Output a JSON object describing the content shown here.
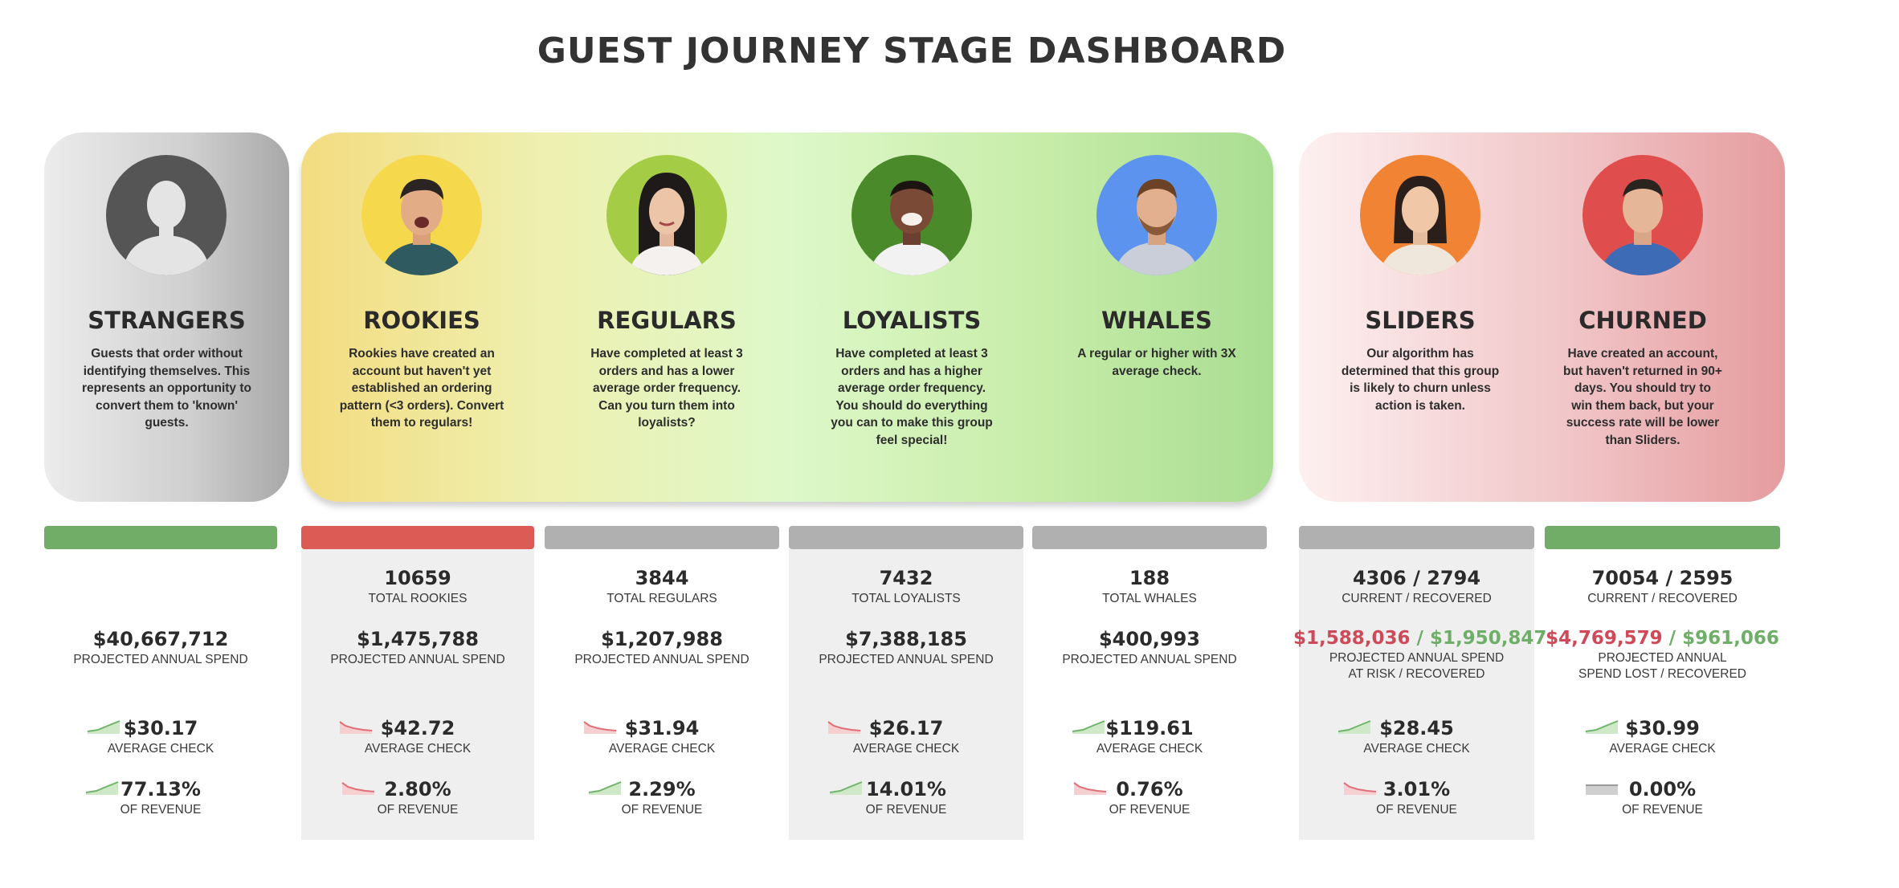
{
  "title": "GUEST JOURNEY STAGE DASHBOARD",
  "colors": {
    "bar_green": "#72ad67",
    "bar_red": "#dd5b55",
    "bar_gray": "#b0b0b0",
    "negative": "#cf4a59",
    "positive": "#6fae69"
  },
  "stages": {
    "strangers": {
      "name": "STRANGERS",
      "desc": "Guests that order without identifying themselves. This represents an opportunity to convert them to 'known' guests.",
      "bar": "green",
      "avatar_bg": "#555555",
      "spend": "$40,667,712",
      "spend_label": "PROJECTED ANNUAL SPEND",
      "check": "$30.17",
      "check_label": "AVERAGE CHECK",
      "check_trend": "up",
      "revenue": "77.13%",
      "revenue_label": "OF REVENUE",
      "revenue_trend": "up"
    },
    "rookies": {
      "name": "ROOKIES",
      "desc": "Rookies have created an account but haven't yet established an ordering pattern (<3 orders). Convert them to regulars!",
      "bar": "red",
      "avatar_bg": "#f6d84c",
      "total": "10659",
      "total_label": "TOTAL ROOKIES",
      "spend": "$1,475,788",
      "spend_label": "PROJECTED ANNUAL SPEND",
      "check": "$42.72",
      "check_label": "AVERAGE CHECK",
      "check_trend": "down",
      "revenue": "2.80%",
      "revenue_label": "OF REVENUE",
      "revenue_trend": "down"
    },
    "regulars": {
      "name": "REGULARS",
      "desc": "Have completed at least 3 orders and has a lower average order frequency. Can you turn them into loyalists?",
      "bar": "gray",
      "avatar_bg": "#a5cc45",
      "total": "3844",
      "total_label": "TOTAL REGULARS",
      "spend": "$1,207,988",
      "spend_label": "PROJECTED ANNUAL SPEND",
      "check": "$31.94",
      "check_label": "AVERAGE CHECK",
      "check_trend": "down",
      "revenue": "2.29%",
      "revenue_label": "OF REVENUE",
      "revenue_trend": "up"
    },
    "loyalists": {
      "name": "LOYALISTS",
      "desc": "Have completed at least 3 orders and has a higher average order frequency. You should do everything you can to make this group feel special!",
      "bar": "gray",
      "avatar_bg": "#4a8a2a",
      "total": "7432",
      "total_label": "TOTAL LOYALISTS",
      "spend": "$7,388,185",
      "spend_label": "PROJECTED ANNUAL SPEND",
      "check": "$26.17",
      "check_label": "AVERAGE CHECK",
      "check_trend": "down",
      "revenue": "14.01%",
      "revenue_label": "OF REVENUE",
      "revenue_trend": "up"
    },
    "whales": {
      "name": "WHALES",
      "desc": "A regular or higher with 3X average check.",
      "bar": "gray",
      "avatar_bg": "#5b93ee",
      "total": "188",
      "total_label": "TOTAL WHALES",
      "spend": "$400,993",
      "spend_label": "PROJECTED ANNUAL SPEND",
      "check": "$119.61",
      "check_label": "AVERAGE CHECK",
      "check_trend": "up",
      "revenue": "0.76%",
      "revenue_label": "OF REVENUE",
      "revenue_trend": "down"
    },
    "sliders": {
      "name": "SLIDERS",
      "desc": "Our algorithm has determined that this group is likely to churn unless action is taken.",
      "bar": "gray",
      "avatar_bg": "#f08334",
      "total": "4306 / 2794",
      "total_label": "CURRENT / RECOVERED",
      "spend_a": "$1,588,036",
      "spend_sep": " / ",
      "spend_b": "$1,950,847",
      "spend_label_1": "PROJECTED ANNUAL SPEND",
      "spend_label_2": "AT RISK / RECOVERED",
      "check": "$28.45",
      "check_label": "AVERAGE CHECK",
      "check_trend": "up",
      "revenue": "3.01%",
      "revenue_label": "OF REVENUE",
      "revenue_trend": "down"
    },
    "churned": {
      "name": "CHURNED",
      "desc": "Have created an account, but haven't returned in 90+ days. You should try to win them back, but your success rate will be lower than Sliders.",
      "bar": "green",
      "avatar_bg": "#df4e4c",
      "total": "70054 / 2595",
      "total_label": "CURRENT / RECOVERED",
      "spend_a": "$4,769,579",
      "spend_sep": " / ",
      "spend_b": "$961,066",
      "spend_label_1": "PROJECTED ANNUAL",
      "spend_label_2": "SPEND LOST / RECOVERED",
      "check": "$30.99",
      "check_label": "AVERAGE CHECK",
      "check_trend": "up",
      "revenue": "0.00%",
      "revenue_label": "OF REVENUE",
      "revenue_trend": "flat"
    }
  }
}
